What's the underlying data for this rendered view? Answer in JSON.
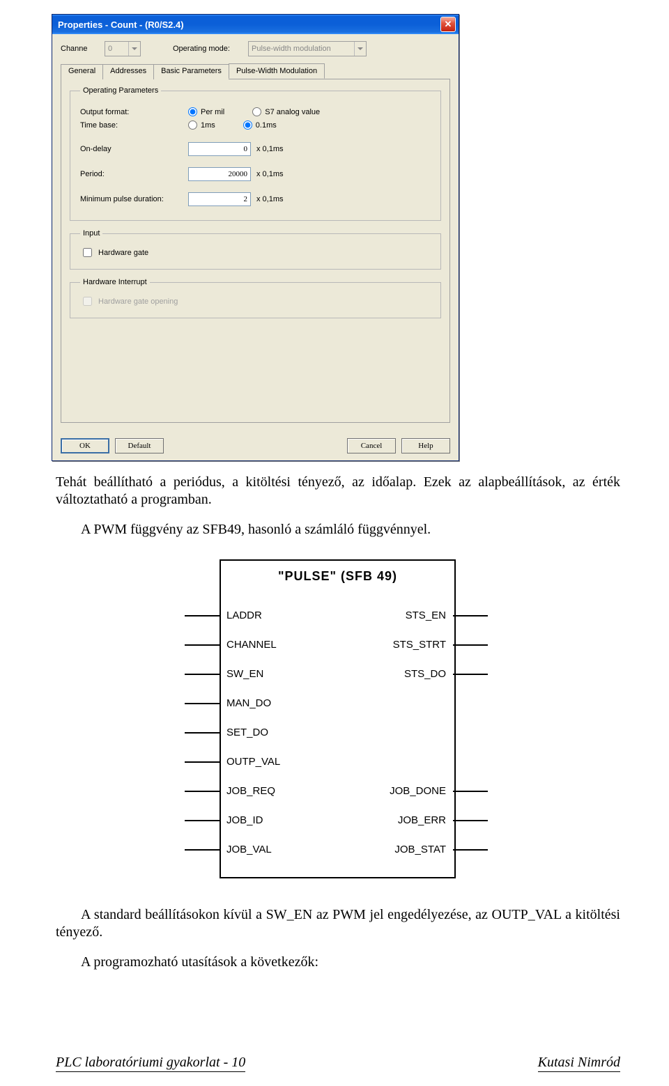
{
  "dialog": {
    "title": "Properties - Count - (R0/S2.4)",
    "channel_label": "Channe",
    "channel_value": "0",
    "opmode_label": "Operating mode:",
    "opmode_value": "Pulse-width modulation",
    "tabs": [
      "General",
      "Addresses",
      "Basic Parameters",
      "Pulse-Width Modulation"
    ],
    "group_operating": "Operating Parameters",
    "output_format_label": "Output format:",
    "output_format_opts": [
      "Per mil",
      "S7 analog value"
    ],
    "timebase_label": "Time base:",
    "timebase_opts": [
      "1ms",
      "0.1ms"
    ],
    "ondelay_label": "On-delay",
    "ondelay_value": "0",
    "period_label": "Period:",
    "period_value": "20000",
    "minpulse_label": "Minimum pulse duration:",
    "minpulse_value": "2",
    "unit": "x  0,1ms",
    "group_input": "Input",
    "hwgate_label": "Hardware gate",
    "group_hwint": "Hardware Interrupt",
    "hwgate_open_label": "Hardware gate opening",
    "btn_ok": "OK",
    "btn_default": "Default",
    "btn_cancel": "Cancel",
    "btn_help": "Help"
  },
  "paragraph1": "Tehát beállítható a periódus, a kitöltési tényező, az időalap. Ezek az alapbeállítások, az érték változtatható a programban.",
  "paragraph2": "A PWM függvény az SFB49, hasonló a számláló függvénnyel.",
  "sfb": {
    "title": "\"PULSE\"  (SFB 49)",
    "left": [
      "LADDR",
      "CHANNEL",
      "SW_EN",
      "MAN_DO",
      "SET_DO",
      "OUTP_VAL",
      "JOB_REQ",
      "JOB_ID",
      "JOB_VAL"
    ],
    "right_map": {
      "0": "STS_EN",
      "1": "STS_STRT",
      "2": "STS_DO",
      "6": "JOB_DONE",
      "7": "JOB_ERR",
      "8": "JOB_STAT"
    }
  },
  "paragraph3": "A standard beállításokon kívül a SW_EN az PWM jel engedélyezése, az OUTP_VAL a kitöltési tényező.",
  "paragraph4": "A programozható utasítások a következők:",
  "footer_left": "PLC laboratóriumi gyakorlat - 10",
  "footer_right": "Kutasi Nimród"
}
